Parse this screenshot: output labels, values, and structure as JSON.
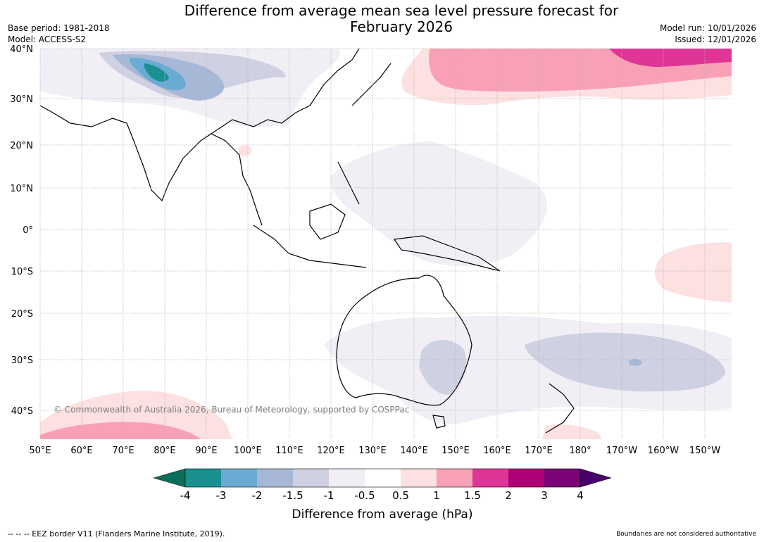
{
  "header": {
    "title_line1": "Difference from average mean sea level pressure forecast for",
    "title_line2": "February 2026",
    "base_period": "Base period: 1981-2018",
    "model": "Model: ACCESS-S2",
    "model_run": "Model run: 10/01/2026",
    "issued": "Issued: 12/01/2026"
  },
  "map": {
    "lat_labels": [
      "40°N",
      "30°N",
      "20°N",
      "10°N",
      "0°",
      "10°S",
      "20°S",
      "30°S",
      "40°S"
    ],
    "lon_labels": [
      "50°E",
      "60°E",
      "70°E",
      "80°E",
      "90°E",
      "100°E",
      "110°E",
      "120°E",
      "130°E",
      "140°E",
      "150°E",
      "160°E",
      "170°E",
      "180°",
      "170°W",
      "160°W",
      "150°W"
    ],
    "copyright": "© Commonwealth of Australia 2026, Bureau of Meteorology, supported by COSPPac"
  },
  "colorbar": {
    "tick_labels": [
      "-4",
      "-3",
      "-2",
      "-1.5",
      "-1",
      "-0.5",
      "0.5",
      "1",
      "1.5",
      "2",
      "3",
      "4"
    ],
    "colors": [
      "#1a9191",
      "#69abd2",
      "#a6b8d6",
      "#cfd0e2",
      "#f1eef5",
      "#ffffff",
      "#fde0e0",
      "#f8a0b6",
      "#de3597",
      "#ae0176",
      "#7b0277"
    ],
    "low_extend_color": "#0a6e5a",
    "high_extend_color": "#4a006a",
    "label": "Difference from average (hPa)"
  },
  "footer": {
    "eez_legend": "--  --  -- EEZ border V11 (Flanders Marine Institute, 2019).",
    "disclaimer": "Boundaries are not considered authoritative"
  }
}
